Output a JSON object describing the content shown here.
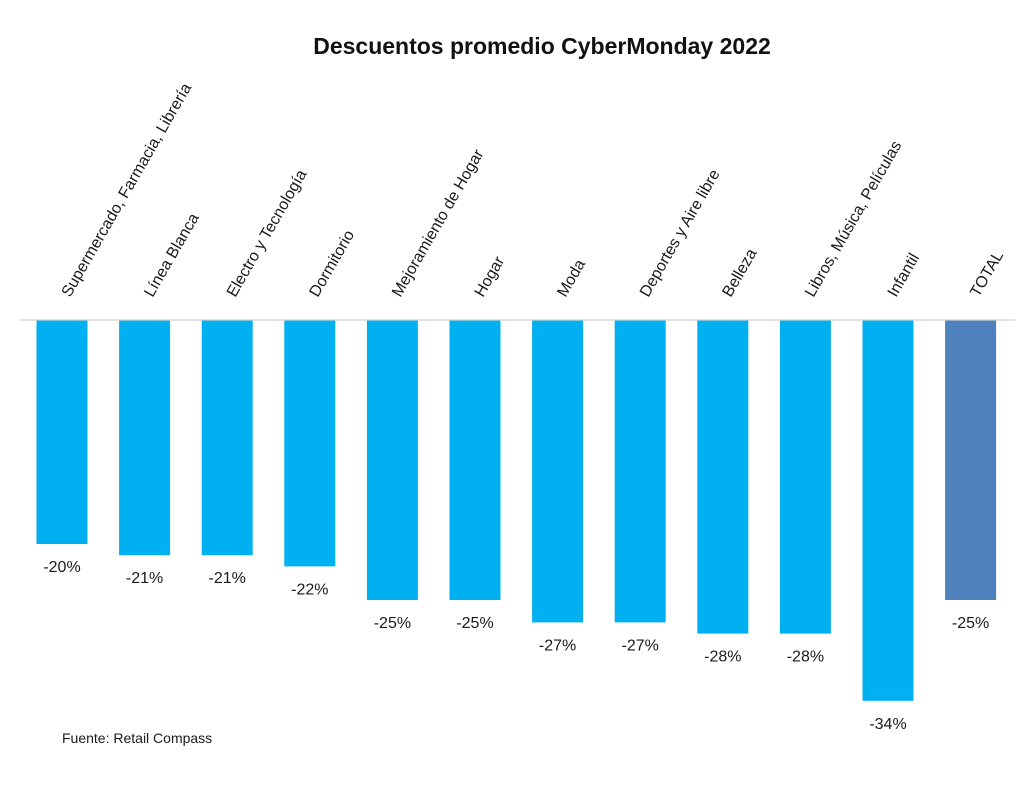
{
  "chart_data": {
    "type": "bar",
    "title": "Descuentos promedio CyberMonday 2022",
    "categories": [
      "Supermercado, Farmacia, Librería",
      "Línea Blanca",
      "Electro y Tecnología",
      "Dormitorio",
      "Mejoramiento de Hogar",
      "Hogar",
      "Moda",
      "Deportes y Aire libre",
      "Belleza",
      "Libros, Música, Películas",
      "Infantil",
      "TOTAL"
    ],
    "values": [
      -20,
      -21,
      -21,
      -22,
      -25,
      -25,
      -27,
      -27,
      -28,
      -28,
      -34,
      -25
    ],
    "data_labels": [
      "-20%",
      "-21%",
      "-21%",
      "-22%",
      "-25%",
      "-25%",
      "-27%",
      "-27%",
      "-28%",
      "-28%",
      "-34%",
      "-25%"
    ],
    "ylim": [
      -35,
      0
    ],
    "xlabel": "",
    "ylabel": "",
    "grid": false,
    "legend": "none",
    "colors": {
      "bar": "#00B0F0",
      "total_bar": "#4F81BD",
      "axis": "#D0D0D0"
    }
  },
  "source": "Fuente: Retail Compass"
}
